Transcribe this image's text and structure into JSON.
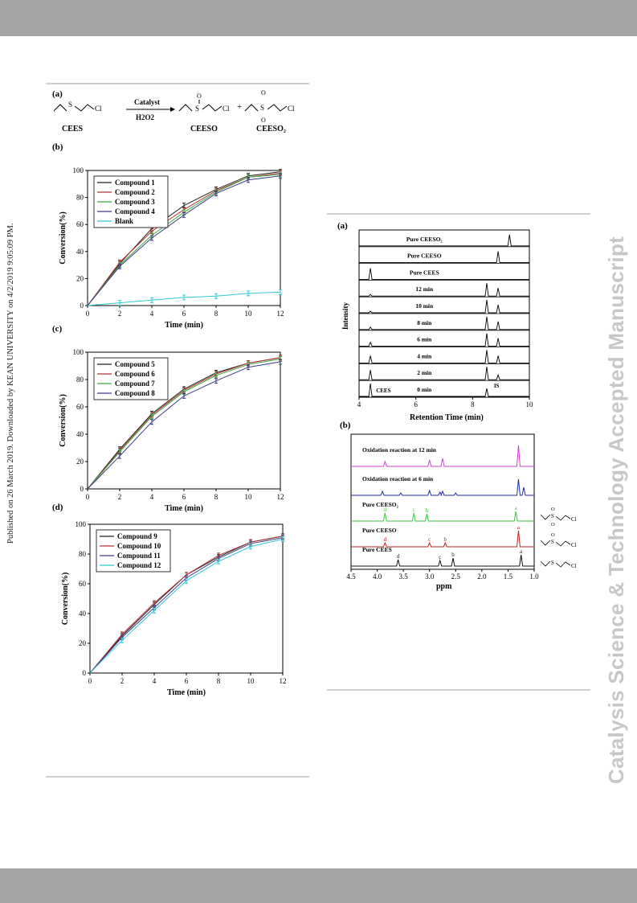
{
  "watermark": "Catalysis Science & Technology Accepted Manuscript",
  "published_note": "Published on 26 March 2019. Downloaded by KEAN UNIVERSITY on 4/2/2019 9:05:09 PM.",
  "left_figure": {
    "panel_a": {
      "label": "(a)",
      "reactant": "CEES",
      "catalyst": "Catalyst",
      "oxidant": "H2O2",
      "product1": "CEESO",
      "product2": "CEESO₂",
      "plus": "+",
      "cl": "Cl",
      "s": "S",
      "o": "O"
    }
  },
  "right_figure": {
    "panel_a": {
      "label": "(a)",
      "traces": [
        "Pure CEESO₂",
        "Pure CEESO",
        "Pure CEES",
        "12 min",
        "10 min",
        "8 min",
        "6 min",
        "4 min",
        "2 min",
        "0 min"
      ],
      "peak_cees": "CEES",
      "peak_is": "IS",
      "ylabel": "Intensity",
      "xlabel": "Retention Time (min)",
      "xticks": [
        "4",
        "6",
        "8",
        "10"
      ]
    },
    "panel_b": {
      "label": "(b)",
      "traces": [
        "Oxidation reaction at 12 min",
        "Oxidation reaction at 6 min",
        "Pure CEESO₂",
        "Pure CEESO",
        "Pure CEES"
      ],
      "xlabel": "ppm",
      "xticks": [
        "4.5",
        "4.0",
        "3.5",
        "3.0",
        "2.5",
        "2.0",
        "1.5",
        "1.0"
      ],
      "peak_letters": {
        "a": "a",
        "b": "b",
        "c": "c",
        "d": "d"
      },
      "cl": "Cl",
      "s": "S",
      "o": "O"
    }
  },
  "chart_data": [
    {
      "type": "line",
      "panel": "(b)",
      "xlabel": "Time (min)",
      "ylabel": "Conversion(%)",
      "xlim": [
        0,
        12
      ],
      "ylim": [
        0,
        100
      ],
      "xticks": [
        0,
        2,
        4,
        6,
        8,
        10,
        12
      ],
      "yticks": [
        0,
        20,
        40,
        60,
        80,
        100
      ],
      "x": [
        0,
        2,
        4,
        6,
        8,
        10,
        12
      ],
      "legend": "top-left",
      "series": [
        {
          "name": "Compound 1",
          "color": "#222222",
          "values": [
            0,
            31,
            57,
            74,
            86,
            96,
            99
          ]
        },
        {
          "name": "Compound 2",
          "color": "#b03030",
          "values": [
            0,
            32,
            55,
            71,
            85,
            95,
            98
          ]
        },
        {
          "name": "Compound 3",
          "color": "#3aa83a",
          "values": [
            0,
            30,
            52,
            69,
            84,
            95,
            97
          ]
        },
        {
          "name": "Compound 4",
          "color": "#3a3a8a",
          "values": [
            0,
            29,
            50,
            67,
            83,
            93,
            96
          ]
        },
        {
          "name": "Blank",
          "color": "#2fc8d8",
          "values": [
            0,
            2,
            4,
            6,
            7,
            9,
            10
          ]
        }
      ]
    },
    {
      "type": "line",
      "panel": "(c)",
      "xlabel": "Time (min)",
      "ylabel": "Conversion(%)",
      "xlim": [
        0,
        12
      ],
      "ylim": [
        0,
        100
      ],
      "xticks": [
        0,
        2,
        4,
        6,
        8,
        10,
        12
      ],
      "yticks": [
        0,
        20,
        40,
        60,
        80,
        100
      ],
      "x": [
        0,
        2,
        4,
        6,
        8,
        10,
        12
      ],
      "legend": "top-left",
      "series": [
        {
          "name": "Compound 5",
          "color": "#222222",
          "values": [
            0,
            29,
            55,
            73,
            85,
            92,
            96
          ]
        },
        {
          "name": "Compound 6",
          "color": "#b03030",
          "values": [
            0,
            28,
            54,
            72,
            84,
            92,
            96
          ]
        },
        {
          "name": "Compound 7",
          "color": "#3aa83a",
          "values": [
            0,
            27,
            53,
            71,
            83,
            91,
            95
          ]
        },
        {
          "name": "Compound 8",
          "color": "#3a3a8a",
          "values": [
            0,
            24,
            49,
            68,
            79,
            89,
            93
          ]
        }
      ]
    },
    {
      "type": "line",
      "panel": "(d)",
      "xlabel": "Time (min)",
      "ylabel": "Conversion(%)",
      "xlim": [
        0,
        12
      ],
      "ylim": [
        0,
        100
      ],
      "xticks": [
        0,
        2,
        4,
        6,
        8,
        10,
        12
      ],
      "yticks": [
        0,
        20,
        40,
        60,
        80,
        100
      ],
      "x": [
        0,
        2,
        4,
        6,
        8,
        10,
        12
      ],
      "legend": "top-left",
      "series": [
        {
          "name": "Compound 9",
          "color": "#222222",
          "values": [
            0,
            25,
            46,
            66,
            78,
            88,
            92
          ]
        },
        {
          "name": "Compound 10",
          "color": "#b03030",
          "values": [
            0,
            26,
            47,
            66,
            79,
            88,
            92
          ]
        },
        {
          "name": "Compound 11",
          "color": "#3a3a8a",
          "values": [
            0,
            24,
            44,
            64,
            77,
            87,
            91
          ]
        },
        {
          "name": "Compound 12",
          "color": "#2fc8d8",
          "values": [
            0,
            22,
            42,
            62,
            75,
            85,
            90
          ]
        }
      ]
    }
  ]
}
